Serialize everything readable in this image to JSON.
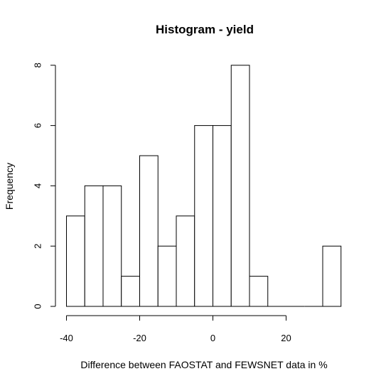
{
  "chart_data": {
    "type": "bar",
    "title": "Histogram - yield",
    "xlabel": "Difference between FAOSTAT and FEWSNET data in %",
    "ylabel": "Frequency",
    "bins": [
      [
        -40,
        -35
      ],
      [
        -35,
        -30
      ],
      [
        -30,
        -25
      ],
      [
        -25,
        -20
      ],
      [
        -20,
        -15
      ],
      [
        -15,
        -10
      ],
      [
        -10,
        -5
      ],
      [
        -5,
        0
      ],
      [
        0,
        5
      ],
      [
        5,
        10
      ],
      [
        10,
        15
      ],
      [
        15,
        20
      ],
      [
        20,
        25
      ],
      [
        25,
        30
      ],
      [
        30,
        35
      ]
    ],
    "values": [
      3,
      4,
      4,
      1,
      5,
      2,
      3,
      6,
      6,
      8,
      1,
      0,
      0,
      0,
      2
    ],
    "xlim": [
      -40,
      35
    ],
    "ylim": [
      0,
      8
    ],
    "xticks": [
      -40,
      -20,
      0,
      20
    ],
    "yticks": [
      0,
      2,
      4,
      6,
      8
    ],
    "grid": false
  }
}
